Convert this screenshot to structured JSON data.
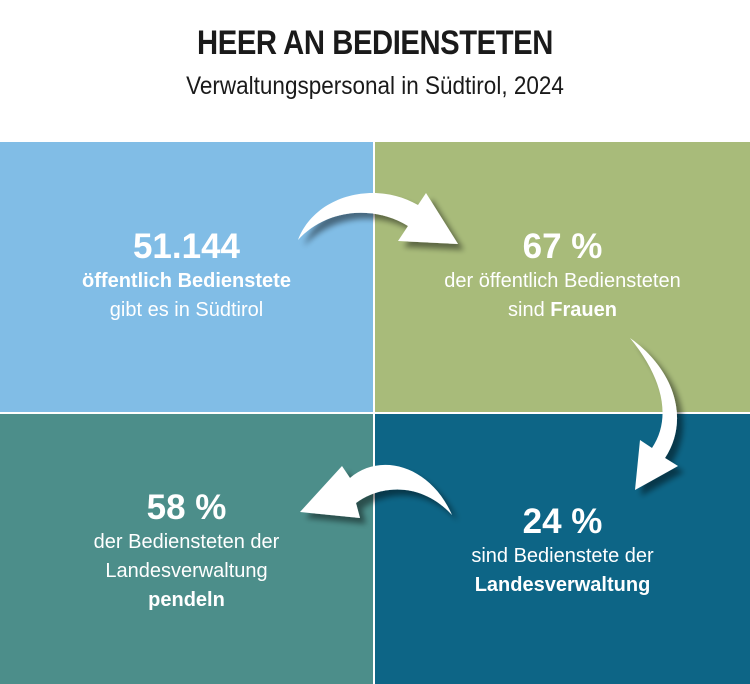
{
  "header": {
    "title": "HEER AN BEDIENSTETEN",
    "subtitle": "Verwaltungspersonal in Südtirol, 2024"
  },
  "colors": {
    "top_left": "#81bde6",
    "top_right": "#a8bb7a",
    "bottom_left": "#4c8e8a",
    "bottom_right": "#0d6586"
  },
  "panels": {
    "top_left": {
      "value": "51.144",
      "line1": "öffentlich Bedienstete",
      "line2": "gibt es in Südtirol"
    },
    "top_right": {
      "value": "67 %",
      "line1": "der öffentlich Bediensteten",
      "line2_prefix": "sind ",
      "line2_bold": "Frauen"
    },
    "bottom_right": {
      "value": "24 %",
      "line1": "sind Bedienstete der",
      "line2": "Landesverwaltung"
    },
    "bottom_left": {
      "value": "58 %",
      "line1": "der Bediensteten der",
      "line2": "Landesverwaltung",
      "line3": "pendeln"
    }
  }
}
